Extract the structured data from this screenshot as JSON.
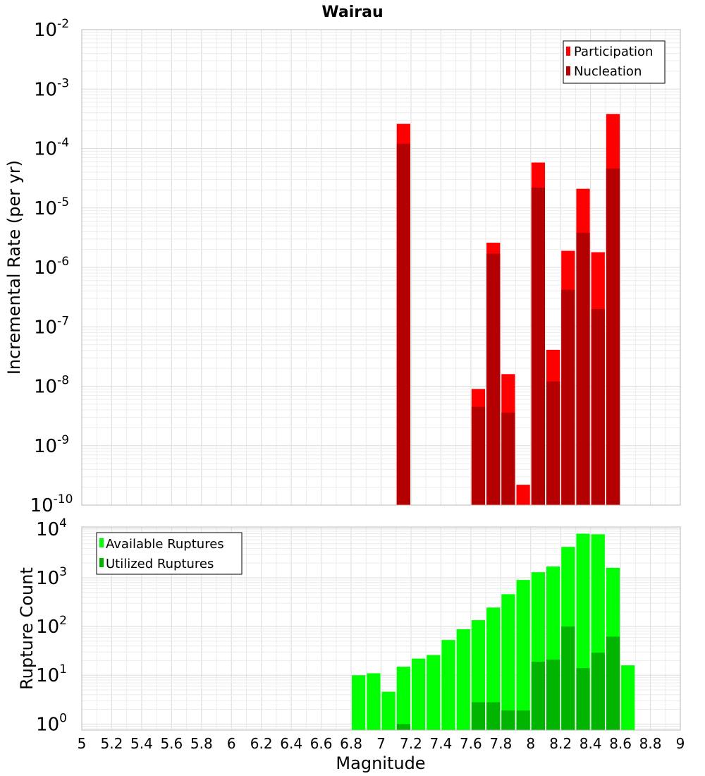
{
  "chart_data": [
    {
      "type": "bar",
      "title": "Wairau",
      "ylabel": "Incremental Rate (per yr)",
      "yscale": "log",
      "ylim": [
        1e-10,
        0.01
      ],
      "xlim": [
        5,
        9
      ],
      "bin_width": 0.1,
      "grid": true,
      "legend_position": "top-right",
      "series": [
        {
          "name": "Participation",
          "color": "#ff0000",
          "points": [
            {
              "x": 7.15,
              "y": 0.00026
            },
            {
              "x": 7.65,
              "y": 9e-09
            },
            {
              "x": 7.75,
              "y": 2.6e-06
            },
            {
              "x": 7.85,
              "y": 1.6e-08
            },
            {
              "x": 7.95,
              "y": 2.2e-10
            },
            {
              "x": 8.05,
              "y": 5.8e-05
            },
            {
              "x": 8.15,
              "y": 4.1e-08
            },
            {
              "x": 8.25,
              "y": 1.9e-06
            },
            {
              "x": 8.35,
              "y": 2.1e-05
            },
            {
              "x": 8.45,
              "y": 1.8e-06
            },
            {
              "x": 8.55,
              "y": 0.00038
            }
          ]
        },
        {
          "name": "Nucleation",
          "color": "#b40000",
          "points": [
            {
              "x": 7.15,
              "y": 0.00012
            },
            {
              "x": 7.65,
              "y": 4.5e-09
            },
            {
              "x": 7.75,
              "y": 1.7e-06
            },
            {
              "x": 7.85,
              "y": 3.6e-09
            },
            {
              "x": 8.05,
              "y": 2.2e-05
            },
            {
              "x": 8.15,
              "y": 1.2e-08
            },
            {
              "x": 8.25,
              "y": 4.2e-07
            },
            {
              "x": 8.35,
              "y": 3.8e-06
            },
            {
              "x": 8.45,
              "y": 2e-07
            },
            {
              "x": 8.55,
              "y": 4.6e-05
            }
          ]
        }
      ],
      "y_ticks": [
        {
          "base": "10",
          "exp": "-2",
          "value": 0.01
        },
        {
          "base": "10",
          "exp": "-3",
          "value": 0.001
        },
        {
          "base": "10",
          "exp": "-4",
          "value": 0.0001
        },
        {
          "base": "10",
          "exp": "-5",
          "value": 1e-05
        },
        {
          "base": "10",
          "exp": "-6",
          "value": 1e-06
        },
        {
          "base": "10",
          "exp": "-7",
          "value": 1e-07
        },
        {
          "base": "10",
          "exp": "-8",
          "value": 1e-08
        },
        {
          "base": "10",
          "exp": "-9",
          "value": 1e-09
        },
        {
          "base": "10",
          "exp": "-10",
          "value": 1e-10
        }
      ]
    },
    {
      "type": "bar",
      "xlabel": "Magnitude",
      "ylabel": "Rupture Count",
      "yscale": "log",
      "ylim": [
        0.75,
        11000
      ],
      "xlim": [
        5,
        9
      ],
      "bin_width": 0.1,
      "grid": true,
      "legend_position": "top-left",
      "series": [
        {
          "name": "Available Ruptures",
          "color": "#00ff00",
          "points": [
            {
              "x": 6.85,
              "y": 10
            },
            {
              "x": 6.95,
              "y": 11
            },
            {
              "x": 7.05,
              "y": 4.6
            },
            {
              "x": 7.15,
              "y": 15
            },
            {
              "x": 7.25,
              "y": 22
            },
            {
              "x": 7.35,
              "y": 26
            },
            {
              "x": 7.45,
              "y": 53
            },
            {
              "x": 7.55,
              "y": 88
            },
            {
              "x": 7.65,
              "y": 135
            },
            {
              "x": 7.75,
              "y": 245
            },
            {
              "x": 7.85,
              "y": 460
            },
            {
              "x": 7.95,
              "y": 900
            },
            {
              "x": 8.05,
              "y": 1300
            },
            {
              "x": 8.15,
              "y": 1700
            },
            {
              "x": 8.25,
              "y": 4300
            },
            {
              "x": 8.35,
              "y": 8000
            },
            {
              "x": 8.45,
              "y": 7800
            },
            {
              "x": 8.55,
              "y": 1600
            },
            {
              "x": 8.65,
              "y": 16
            }
          ]
        },
        {
          "name": "Utilized Ruptures",
          "color": "#00b400",
          "points": [
            {
              "x": 7.15,
              "y": 1
            },
            {
              "x": 7.65,
              "y": 2.8
            },
            {
              "x": 7.75,
              "y": 2.8
            },
            {
              "x": 7.85,
              "y": 1.9
            },
            {
              "x": 7.95,
              "y": 1.9
            },
            {
              "x": 8.05,
              "y": 19
            },
            {
              "x": 8.15,
              "y": 21
            },
            {
              "x": 8.25,
              "y": 100
            },
            {
              "x": 8.35,
              "y": 14
            },
            {
              "x": 8.45,
              "y": 29
            },
            {
              "x": 8.55,
              "y": 62
            }
          ]
        }
      ],
      "y_ticks": [
        {
          "base": "10",
          "exp": "4",
          "value": 10000
        },
        {
          "base": "10",
          "exp": "3",
          "value": 1000
        },
        {
          "base": "10",
          "exp": "2",
          "value": 100
        },
        {
          "base": "10",
          "exp": "1",
          "value": 10
        },
        {
          "base": "10",
          "exp": "0",
          "value": 1
        }
      ],
      "x_ticks": [
        "5",
        "5.2",
        "5.4",
        "5.6",
        "5.8",
        "6",
        "6.2",
        "6.4",
        "6.6",
        "6.8",
        "7",
        "7.2",
        "7.4",
        "7.6",
        "7.8",
        "8",
        "8.2",
        "8.4",
        "8.6",
        "8.8",
        "9"
      ]
    }
  ]
}
